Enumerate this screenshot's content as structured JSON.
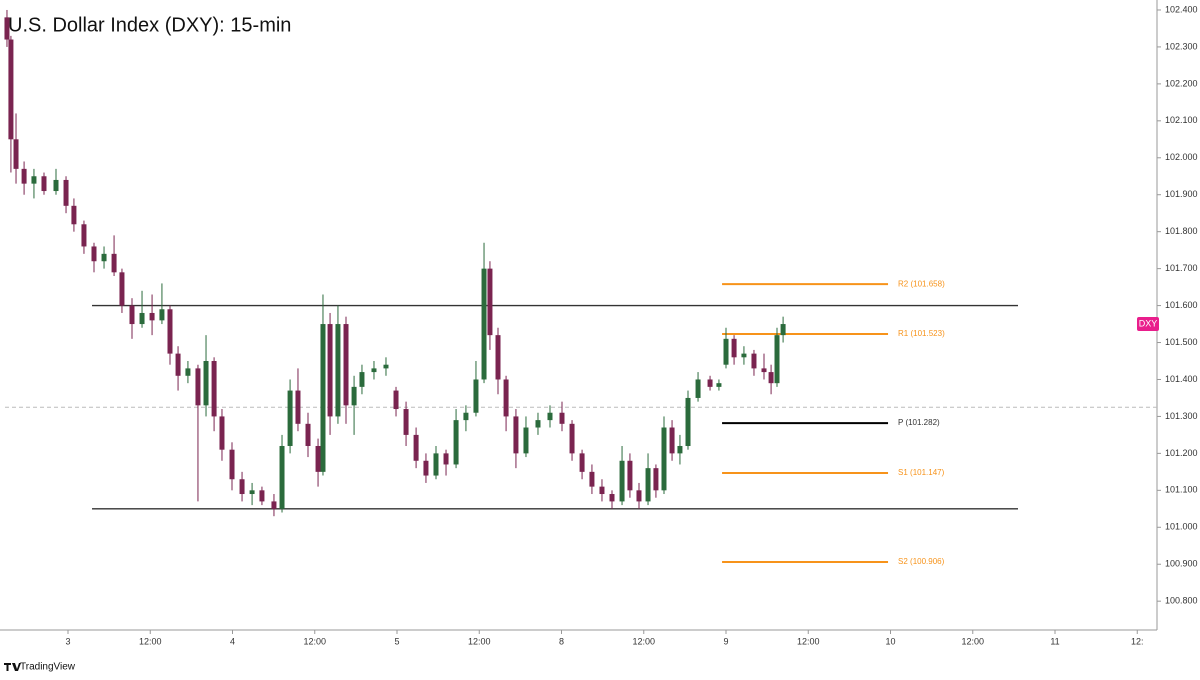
{
  "chart_data": {
    "type": "candlestick",
    "title": "U.S. Dollar Index (DXY): 15-min",
    "symbol": "DXY",
    "symbol_color": "#e91e8c",
    "brand": "TradingView",
    "up_color": "#2b6b3c",
    "down_color": "#7a2450",
    "x": [
      -0.371,
      -0.347,
      -0.316,
      -0.267,
      -0.207,
      -0.146,
      -0.073,
      -0.012,
      0.036,
      0.097,
      0.158,
      0.219,
      0.28,
      0.328,
      0.389,
      0.45,
      0.511,
      0.571,
      0.62,
      0.669,
      0.729,
      0.79,
      0.839,
      0.888,
      0.936,
      0.997,
      1.058,
      1.119,
      1.179,
      1.252,
      1.301,
      1.35,
      1.398,
      1.459,
      1.52,
      1.55,
      1.593,
      1.641,
      1.69,
      1.739,
      1.787,
      1.86,
      1.933,
      1.994,
      2.055,
      2.116,
      2.176,
      2.237,
      2.298,
      2.359,
      2.419,
      2.48,
      2.529,
      2.565,
      2.614,
      2.663,
      2.723,
      2.784,
      2.857,
      2.93,
      3.003,
      3.064,
      3.125,
      3.185,
      3.246,
      3.307,
      3.368,
      3.416,
      3.471,
      3.526,
      3.574,
      3.623,
      3.672,
      3.72,
      3.769,
      3.83,
      3.903,
      3.957,
      4.0,
      4.049,
      4.109,
      4.17,
      4.231,
      4.274,
      4.31,
      4.347
    ],
    "open": [
      102.38,
      102.32,
      102.05,
      101.97,
      101.93,
      101.95,
      101.91,
      101.94,
      101.87,
      101.82,
      101.76,
      101.72,
      101.74,
      101.69,
      101.6,
      101.55,
      101.58,
      101.56,
      101.59,
      101.47,
      101.41,
      101.43,
      101.33,
      101.45,
      101.3,
      101.21,
      101.13,
      101.09,
      101.1,
      101.07,
      101.05,
      101.22,
      101.37,
      101.28,
      101.22,
      101.15,
      101.55,
      101.3,
      101.55,
      101.33,
      101.38,
      101.42,
      101.43,
      101.37,
      101.32,
      101.25,
      101.18,
      101.14,
      101.2,
      101.17,
      101.29,
      101.31,
      101.4,
      101.7,
      101.52,
      101.4,
      101.3,
      101.2,
      101.27,
      101.29,
      101.31,
      101.28,
      101.2,
      101.15,
      101.11,
      101.09,
      101.07,
      101.18,
      101.1,
      101.07,
      101.16,
      101.1,
      101.27,
      101.2,
      101.22,
      101.35,
      101.4,
      101.38,
      101.44,
      101.51,
      101.46,
      101.47,
      101.43,
      101.42,
      101.39,
      101.52
    ],
    "high": [
      102.4,
      102.33,
      102.12,
      101.99,
      101.97,
      101.96,
      101.97,
      101.95,
      101.89,
      101.83,
      101.77,
      101.76,
      101.79,
      101.7,
      101.62,
      101.64,
      101.63,
      101.66,
      101.6,
      101.49,
      101.45,
      101.44,
      101.52,
      101.46,
      101.32,
      101.23,
      101.15,
      101.12,
      101.11,
      101.09,
      101.25,
      101.4,
      101.43,
      101.31,
      101.24,
      101.63,
      101.58,
      101.6,
      101.57,
      101.41,
      101.44,
      101.45,
      101.46,
      101.38,
      101.34,
      101.27,
      101.2,
      101.22,
      101.21,
      101.32,
      101.33,
      101.45,
      101.77,
      101.72,
      101.54,
      101.41,
      101.32,
      101.3,
      101.31,
      101.33,
      101.34,
      101.29,
      101.21,
      101.17,
      101.13,
      101.1,
      101.22,
      101.2,
      101.12,
      101.2,
      101.17,
      101.3,
      101.29,
      101.25,
      101.37,
      101.42,
      101.41,
      101.4,
      101.54,
      101.52,
      101.49,
      101.48,
      101.47,
      101.44,
      101.54,
      101.57
    ],
    "low": [
      102.3,
      101.96,
      101.93,
      101.9,
      101.89,
      101.9,
      101.9,
      101.85,
      101.8,
      101.74,
      101.69,
      101.7,
      101.68,
      101.58,
      101.51,
      101.54,
      101.52,
      101.55,
      101.44,
      101.37,
      101.39,
      101.07,
      101.3,
      101.26,
      101.18,
      101.1,
      101.07,
      101.06,
      101.06,
      101.03,
      101.04,
      101.2,
      101.26,
      101.19,
      101.11,
      101.14,
      101.25,
      101.28,
      101.28,
      101.25,
      101.36,
      101.4,
      101.41,
      101.3,
      101.22,
      101.16,
      101.12,
      101.13,
      101.14,
      101.16,
      101.26,
      101.3,
      101.39,
      101.48,
      101.36,
      101.26,
      101.16,
      101.19,
      101.25,
      101.27,
      101.26,
      101.18,
      101.13,
      101.09,
      101.07,
      101.05,
      101.06,
      101.08,
      101.05,
      101.06,
      101.08,
      101.09,
      101.18,
      101.17,
      101.21,
      101.34,
      101.37,
      101.37,
      101.43,
      101.44,
      101.44,
      101.41,
      101.4,
      101.36,
      101.38,
      101.5
    ],
    "close": [
      102.32,
      102.05,
      101.97,
      101.93,
      101.95,
      101.91,
      101.94,
      101.87,
      101.82,
      101.76,
      101.72,
      101.74,
      101.69,
      101.6,
      101.55,
      101.58,
      101.56,
      101.59,
      101.47,
      101.41,
      101.43,
      101.33,
      101.45,
      101.3,
      101.21,
      101.13,
      101.09,
      101.1,
      101.07,
      101.05,
      101.22,
      101.37,
      101.28,
      101.22,
      101.15,
      101.55,
      101.3,
      101.55,
      101.33,
      101.38,
      101.42,
      101.43,
      101.44,
      101.32,
      101.25,
      101.18,
      101.14,
      101.2,
      101.17,
      101.29,
      101.31,
      101.4,
      101.7,
      101.52,
      101.4,
      101.3,
      101.2,
      101.27,
      101.29,
      101.31,
      101.28,
      101.2,
      101.15,
      101.11,
      101.09,
      101.07,
      101.18,
      101.1,
      101.07,
      101.16,
      101.1,
      101.27,
      101.2,
      101.22,
      101.35,
      101.4,
      101.38,
      101.39,
      101.51,
      101.46,
      101.47,
      101.43,
      101.42,
      101.39,
      101.52,
      101.55
    ],
    "xlim": [
      -0.383,
      6.62
    ],
    "ylim": [
      100.722,
      102.427
    ],
    "xticks": [
      {
        "value": 0,
        "label": "3"
      },
      {
        "value": 0.5,
        "label": "12:00"
      },
      {
        "value": 1,
        "label": "4"
      },
      {
        "value": 1.5,
        "label": "12:00"
      },
      {
        "value": 2,
        "label": "5"
      },
      {
        "value": 2.5,
        "label": "12:00"
      },
      {
        "value": 3,
        "label": "8"
      },
      {
        "value": 3.5,
        "label": "12:00"
      },
      {
        "value": 4,
        "label": "9"
      },
      {
        "value": 4.5,
        "label": "12:00"
      },
      {
        "value": 5,
        "label": "10"
      },
      {
        "value": 5.5,
        "label": "12:00"
      },
      {
        "value": 6,
        "label": "11"
      },
      {
        "value": 6.5,
        "label": "12:"
      }
    ],
    "yticks": [
      {
        "value": 100.8,
        "label": "100.800"
      },
      {
        "value": 100.9,
        "label": "100.900"
      },
      {
        "value": 101,
        "label": "101.000"
      },
      {
        "value": 101.1,
        "label": "101.100"
      },
      {
        "value": 101.2,
        "label": "101.200"
      },
      {
        "value": 101.3,
        "label": "101.300"
      },
      {
        "value": 101.4,
        "label": "101.400"
      },
      {
        "value": 101.5,
        "label": "101.500"
      },
      {
        "value": 101.6,
        "label": "101.600"
      },
      {
        "value": 101.7,
        "label": "101.700"
      },
      {
        "value": 101.8,
        "label": "101.800"
      },
      {
        "value": 101.9,
        "label": "101.900"
      },
      {
        "value": 102,
        "label": "102.000"
      },
      {
        "value": 102.1,
        "label": "102.100"
      },
      {
        "value": 102.2,
        "label": "102.200"
      },
      {
        "value": 102.3,
        "label": "102.300"
      },
      {
        "value": 102.4,
        "label": "102.400"
      }
    ],
    "range_lines": [
      {
        "value": 101.6,
        "xrange": [
          0.146,
          5.775
        ],
        "color": "#333333"
      },
      {
        "value": 101.05,
        "xrange": [
          0.146,
          5.775
        ],
        "color": "#333333"
      },
      {
        "value": 101.325,
        "xrange": [
          -0.383,
          6.62
        ],
        "color": "#bbbbbb",
        "style": "dashed"
      }
    ],
    "levels": [
      {
        "value": 101.658,
        "label": "R2 (101.658)",
        "color": "#f7931a",
        "xrange": [
          3.976,
          4.985
        ]
      },
      {
        "value": 101.523,
        "label": "R1 (101.523)",
        "color": "#f7931a",
        "xrange": [
          3.976,
          4.985
        ]
      },
      {
        "value": 101.282,
        "label": "P (101.282)",
        "color": "#000000",
        "xrange": [
          3.976,
          4.985
        ]
      },
      {
        "value": 101.147,
        "label": "S1 (101.147)",
        "color": "#f7931a",
        "xrange": [
          3.976,
          4.985
        ]
      },
      {
        "value": 100.906,
        "label": "S2 (100.906)",
        "color": "#f7931a",
        "xrange": [
          3.976,
          4.985
        ]
      }
    ]
  }
}
